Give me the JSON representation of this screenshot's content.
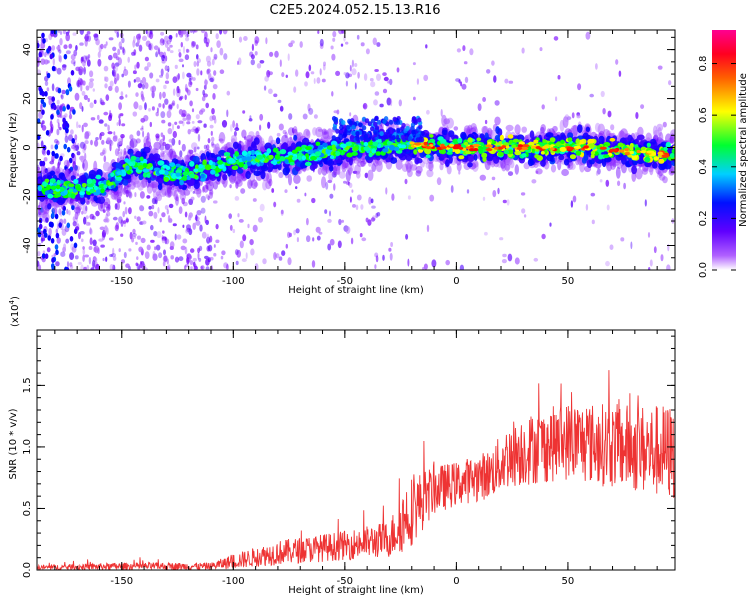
{
  "chart_data": {
    "title": "C2E5.2024.052.15.13.R16",
    "top_panel": {
      "type": "heatmap",
      "xlabel": "Height of straight line (km)",
      "ylabel": "Frequency (Hz)",
      "xlim": [
        -188,
        98
      ],
      "ylim": [
        -50,
        48
      ],
      "xticks": [
        -150,
        -100,
        -50,
        0,
        50
      ],
      "yticks": [
        -40,
        -20,
        0,
        20,
        40
      ],
      "colorbar": {
        "label": "Normalized spectral amplitude",
        "range": [
          0,
          0.93
        ],
        "ticks": [
          "0.0",
          "0.2",
          "0.4",
          "0.6",
          "0.8"
        ],
        "colors": [
          "#ffffff",
          "#7700ff",
          "#0000ff",
          "#00ffff",
          "#00ff00",
          "#ffff00",
          "#ff8800",
          "#ff0000",
          "#ff0088"
        ]
      },
      "ridge": [
        {
          "x": -185,
          "y": -17
        },
        {
          "x": -170,
          "y": -17
        },
        {
          "x": -155,
          "y": -15
        },
        {
          "x": -145,
          "y": -6
        },
        {
          "x": -130,
          "y": -11
        },
        {
          "x": -115,
          "y": -10
        },
        {
          "x": -100,
          "y": -5
        },
        {
          "x": -80,
          "y": -4
        },
        {
          "x": -60,
          "y": -2
        },
        {
          "x": -45,
          "y": 0
        },
        {
          "x": -30,
          "y": 1
        },
        {
          "x": -15,
          "y": 1
        },
        {
          "x": 0,
          "y": 0
        },
        {
          "x": 20,
          "y": 0
        },
        {
          "x": 40,
          "y": 0
        },
        {
          "x": 60,
          "y": 0
        },
        {
          "x": 80,
          "y": -2
        },
        {
          "x": 98,
          "y": -3
        }
      ]
    },
    "bottom_panel": {
      "type": "line",
      "xlabel": "Height of straight line (km)",
      "ylabel": "SNR (10 * v/v)",
      "multiplier": "(x10",
      "multiplier_exp": "4",
      "multiplier_close": ")",
      "xlim": [
        -188,
        98
      ],
      "ylim": [
        0,
        1.95
      ],
      "xticks": [
        -150,
        -100,
        -50,
        0,
        50
      ],
      "yticks": [
        "0.0",
        "0.5",
        "1.0",
        "1.5"
      ],
      "series_color": "#ee3333",
      "envelope": [
        {
          "x": -188,
          "mean": 0.02,
          "spread": 0.02
        },
        {
          "x": -150,
          "mean": 0.03,
          "spread": 0.03
        },
        {
          "x": -110,
          "mean": 0.03,
          "spread": 0.03
        },
        {
          "x": -100,
          "mean": 0.07,
          "spread": 0.06
        },
        {
          "x": -80,
          "mean": 0.14,
          "spread": 0.1
        },
        {
          "x": -50,
          "mean": 0.2,
          "spread": 0.12
        },
        {
          "x": -30,
          "mean": 0.25,
          "spread": 0.15
        },
        {
          "x": -22,
          "mean": 0.45,
          "spread": 0.3
        },
        {
          "x": -10,
          "mean": 0.65,
          "spread": 0.2
        },
        {
          "x": 0,
          "mean": 0.7,
          "spread": 0.18
        },
        {
          "x": 15,
          "mean": 0.78,
          "spread": 0.2
        },
        {
          "x": 25,
          "mean": 0.95,
          "spread": 0.28
        },
        {
          "x": 50,
          "mean": 1.05,
          "spread": 0.32
        },
        {
          "x": 75,
          "mean": 1.0,
          "spread": 0.35
        },
        {
          "x": 98,
          "mean": 0.95,
          "spread": 0.4
        }
      ]
    }
  }
}
